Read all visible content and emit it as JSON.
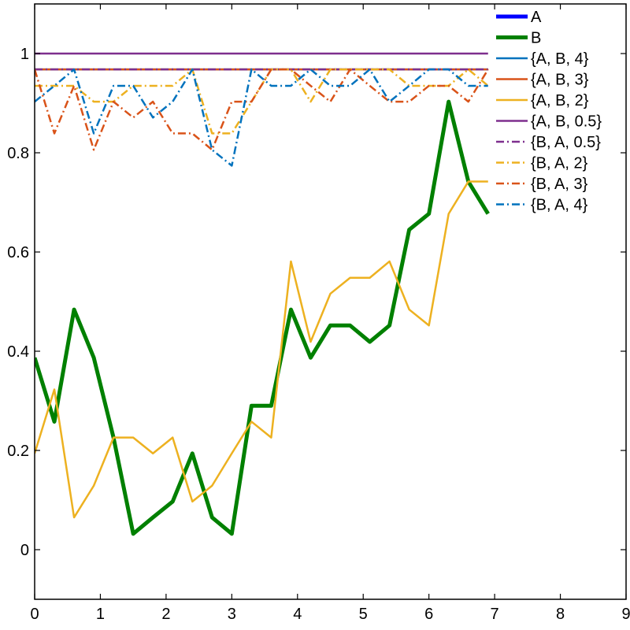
{
  "chart_data": {
    "type": "line",
    "title": "",
    "xlabel": "",
    "ylabel": "",
    "xlim": [
      0,
      9
    ],
    "ylim": [
      -0.1,
      1.1
    ],
    "xticks": [
      0,
      1,
      2,
      3,
      4,
      5,
      6,
      7,
      8,
      9
    ],
    "yticks": [
      0,
      0.2,
      0.4,
      0.6,
      0.8,
      1
    ],
    "xtick_labels": [
      "0",
      "1",
      "2",
      "3",
      "4",
      "5",
      "6",
      "7",
      "8",
      "9"
    ],
    "ytick_labels": [
      "0",
      "0.2",
      "0.4",
      "0.6",
      "0.8",
      "1"
    ],
    "grid": false,
    "legend_position": "top-right",
    "series": [
      {
        "name": "A",
        "color": "#0000ff",
        "style": "solid",
        "width": 5,
        "x": [],
        "y": []
      },
      {
        "name": "B",
        "color": "#008000",
        "style": "solid",
        "width": 5,
        "x": [
          0,
          0.3,
          0.6,
          0.9,
          1.2,
          1.5,
          1.8,
          2.1,
          2.4,
          2.7,
          3.0,
          3.3,
          3.6,
          3.9,
          4.2,
          4.5,
          4.8,
          5.1,
          5.4,
          5.7,
          6.0,
          6.3,
          6.6,
          6.9
        ],
        "y": [
          0.387,
          0.258,
          0.484,
          0.387,
          0.226,
          0.032,
          0.065,
          0.097,
          0.194,
          0.065,
          0.032,
          0.29,
          0.29,
          0.484,
          0.387,
          0.452,
          0.452,
          0.419,
          0.452,
          0.645,
          0.677,
          0.903,
          0.742,
          0.677
        ]
      },
      {
        "name": "{A, B, 4}",
        "color": "#0072bd",
        "style": "solid",
        "width": 2.5,
        "x": [
          0,
          6.9
        ],
        "y": [
          0.968,
          0.968
        ]
      },
      {
        "name": "{A, B, 3}",
        "color": "#d95319",
        "style": "solid",
        "width": 2.5,
        "x": [
          0,
          6.9
        ],
        "y": [
          0.968,
          0.968
        ]
      },
      {
        "name": "{A, B, 2}",
        "color": "#edb120",
        "style": "solid",
        "width": 2.5,
        "x": [
          0,
          0.3,
          0.6,
          0.9,
          1.2,
          1.5,
          1.8,
          2.1,
          2.4,
          2.7,
          3.0,
          3.3,
          3.6,
          3.9,
          4.2,
          4.5,
          4.8,
          5.1,
          5.4,
          5.7,
          6.0,
          6.3,
          6.6,
          6.9
        ],
        "y": [
          0.194,
          0.323,
          0.065,
          0.129,
          0.226,
          0.226,
          0.194,
          0.226,
          0.097,
          0.129,
          0.194,
          0.258,
          0.226,
          0.581,
          0.419,
          0.516,
          0.548,
          0.548,
          0.581,
          0.484,
          0.452,
          0.677,
          0.742,
          0.742
        ]
      },
      {
        "name": "{A, B, 0.5}",
        "color": "#7e2f8e",
        "style": "solid",
        "width": 2.5,
        "x": [
          0,
          6.9
        ],
        "y": [
          1.0,
          1.0
        ]
      },
      {
        "name": "{B, A, 0.5}",
        "color": "#7e2f8e",
        "style": "dashdot",
        "width": 2.5,
        "x": [
          0,
          6.9
        ],
        "y": [
          0.968,
          0.968
        ]
      },
      {
        "name": "{B, A, 2}",
        "color": "#edb120",
        "style": "dashdot",
        "width": 2.5,
        "x": [
          0,
          0.3,
          0.6,
          0.9,
          1.2,
          1.5,
          1.8,
          2.1,
          2.4,
          2.7,
          3.0,
          3.3,
          3.6,
          3.9,
          4.2,
          4.5,
          4.8,
          5.1,
          5.4,
          5.7,
          6.0,
          6.3,
          6.6,
          6.9
        ],
        "y": [
          0.935,
          0.935,
          0.935,
          0.903,
          0.903,
          0.935,
          0.935,
          0.935,
          0.968,
          0.839,
          0.839,
          0.903,
          0.968,
          0.968,
          0.903,
          0.968,
          0.968,
          0.968,
          0.968,
          0.935,
          0.935,
          0.935,
          0.968,
          0.935
        ]
      },
      {
        "name": "{B, A, 3}",
        "color": "#d95319",
        "style": "dashdot",
        "width": 2.5,
        "x": [
          0,
          0.3,
          0.6,
          0.9,
          1.2,
          1.5,
          1.8,
          2.1,
          2.4,
          2.7,
          3.0,
          3.3,
          3.6,
          3.9,
          4.2,
          4.5,
          4.8,
          5.1,
          5.4,
          5.7,
          6.0,
          6.3,
          6.6,
          6.9
        ],
        "y": [
          0.968,
          0.839,
          0.935,
          0.806,
          0.903,
          0.871,
          0.903,
          0.839,
          0.839,
          0.806,
          0.903,
          0.903,
          0.968,
          0.968,
          0.935,
          0.903,
          0.968,
          0.935,
          0.903,
          0.903,
          0.935,
          0.935,
          0.903,
          0.968
        ]
      },
      {
        "name": "{B, A, 4}",
        "color": "#0072bd",
        "style": "dashdot",
        "width": 2.5,
        "x": [
          0,
          0.3,
          0.6,
          0.9,
          1.2,
          1.5,
          1.8,
          2.1,
          2.4,
          2.7,
          3.0,
          3.3,
          3.6,
          3.9,
          4.2,
          4.5,
          4.8,
          5.1,
          5.4,
          5.7,
          6.0,
          6.3,
          6.6,
          6.9
        ],
        "y": [
          0.903,
          0.935,
          0.968,
          0.839,
          0.935,
          0.935,
          0.871,
          0.903,
          0.968,
          0.806,
          0.774,
          0.968,
          0.935,
          0.935,
          0.968,
          0.935,
          0.935,
          0.968,
          0.903,
          0.935,
          0.968,
          0.968,
          0.935,
          0.935
        ]
      }
    ]
  }
}
